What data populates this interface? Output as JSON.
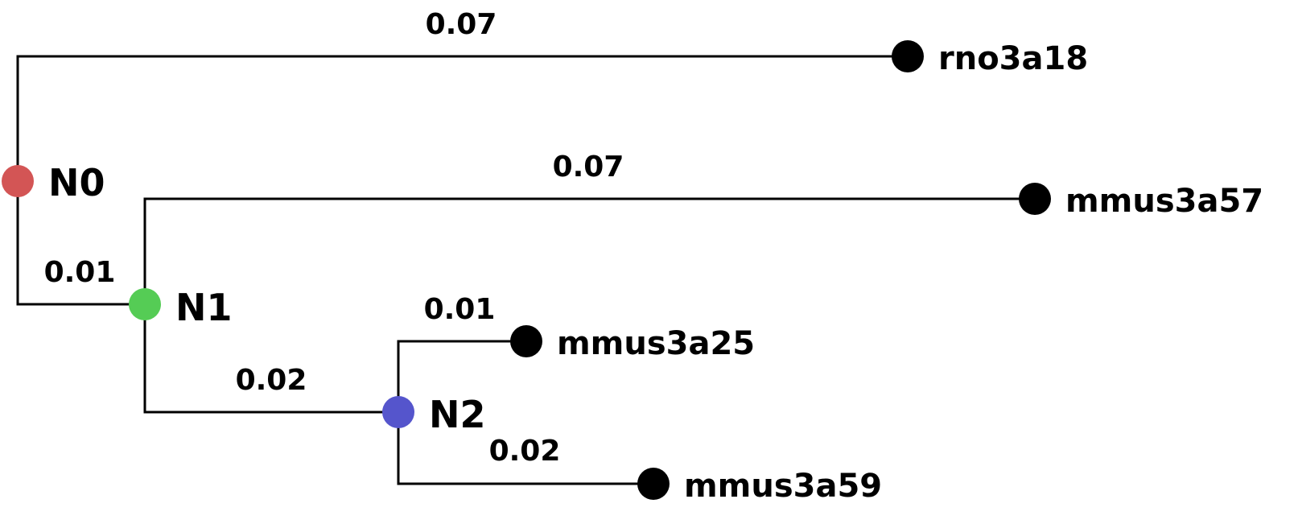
{
  "tree": {
    "colors": {
      "line": "#000000",
      "leaf": "#000000"
    },
    "internal_nodes": [
      {
        "label": "N0",
        "color": "#d35555"
      },
      {
        "label": "N1",
        "color": "#55cc55"
      },
      {
        "label": "N2",
        "color": "#5555cc"
      }
    ],
    "leaves": [
      {
        "label": "rno3a18"
      },
      {
        "label": "mmus3a57"
      },
      {
        "label": "mmus3a25"
      },
      {
        "label": "mmus3a59"
      }
    ],
    "branches": [
      {
        "label": "0.07"
      },
      {
        "label": "0.01"
      },
      {
        "label": "0.07"
      },
      {
        "label": "0.02"
      },
      {
        "label": "0.01"
      },
      {
        "label": "0.02"
      }
    ]
  }
}
